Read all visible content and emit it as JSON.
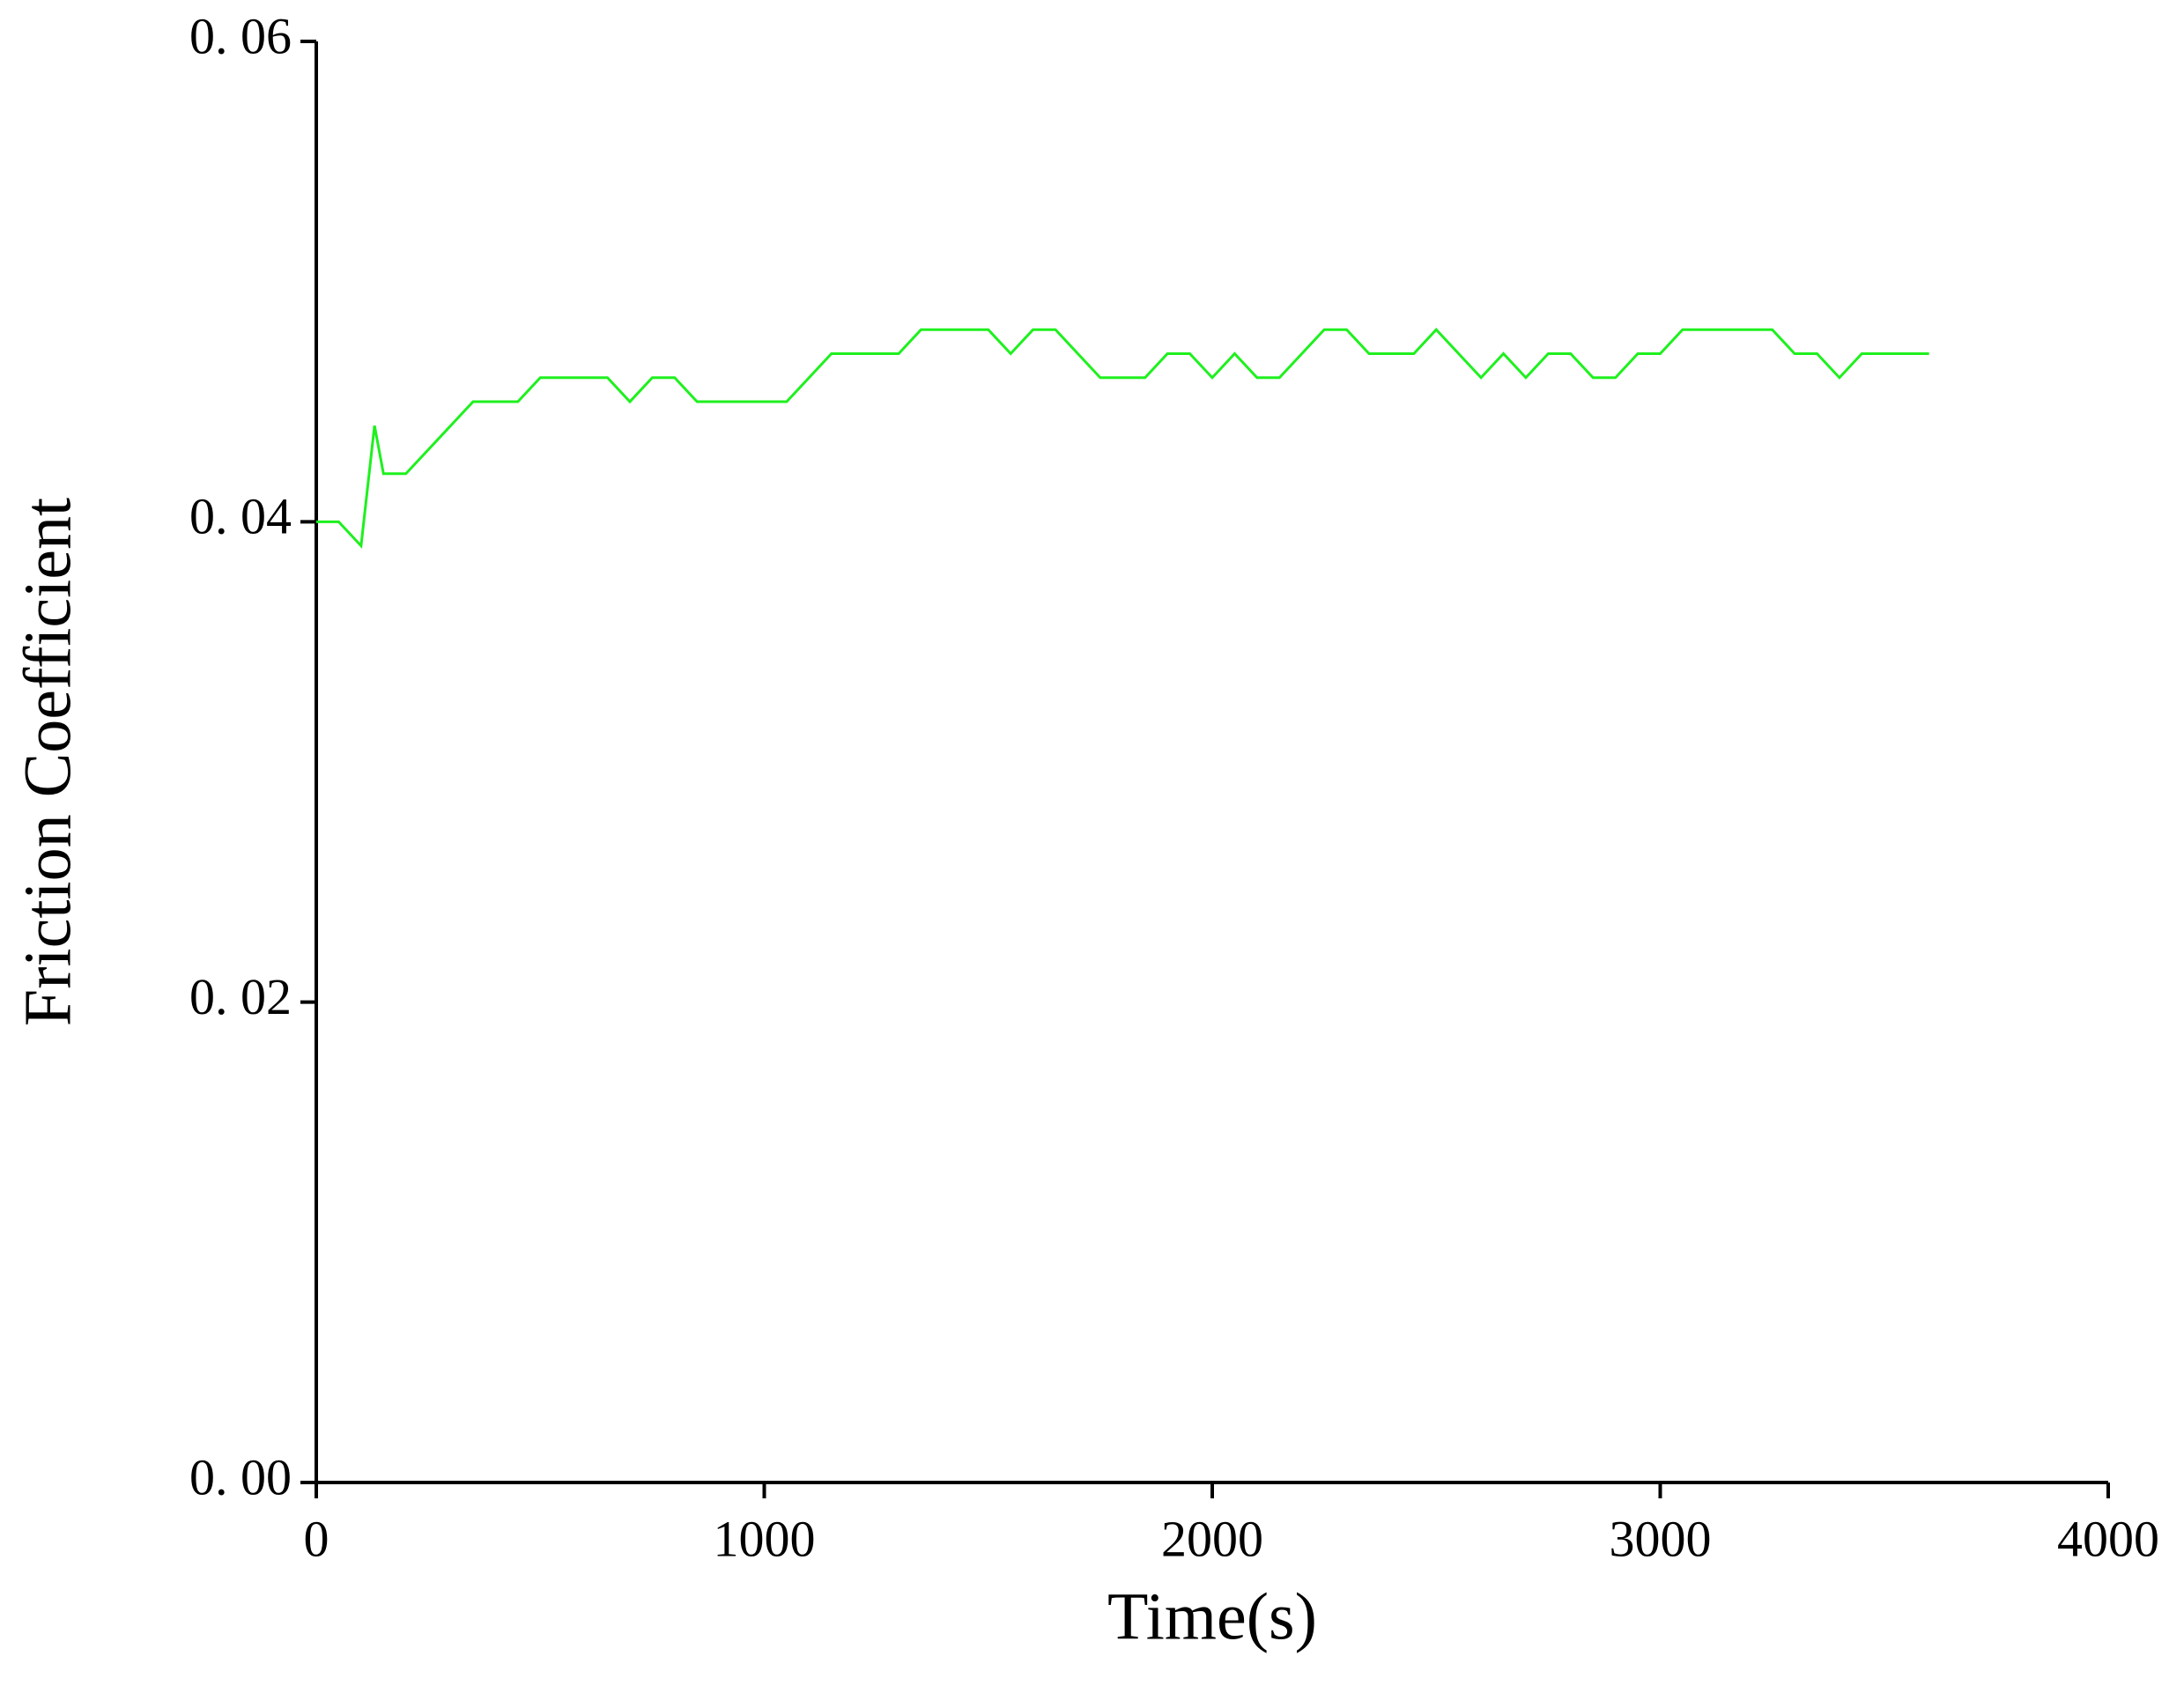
{
  "chart_data": {
    "type": "line",
    "xlabel": "Time(s)",
    "ylabel": "Friction Coefficient",
    "xlim": [
      0,
      4000
    ],
    "xticks": [
      0,
      1000,
      2000,
      3000,
      4000
    ],
    "ylim": [
      0,
      0.06
    ],
    "yticks": [
      {
        "value": 0,
        "label": "0. 00"
      },
      {
        "value": 0.02,
        "label": "0. 02"
      },
      {
        "value": 0.04,
        "label": "0. 04"
      },
      {
        "value": 0.06,
        "label": "0. 06"
      }
    ],
    "grid": false,
    "x": [
      0,
      50,
      100,
      130,
      150,
      200,
      250,
      300,
      350,
      400,
      450,
      500,
      550,
      600,
      650,
      700,
      750,
      800,
      850,
      900,
      950,
      1000,
      1050,
      1100,
      1150,
      1200,
      1250,
      1300,
      1350,
      1400,
      1450,
      1500,
      1550,
      1600,
      1650,
      1700,
      1750,
      1800,
      1850,
      1900,
      1950,
      2000,
      2050,
      2100,
      2150,
      2200,
      2250,
      2300,
      2350,
      2400,
      2450,
      2500,
      2550,
      2600,
      2650,
      2700,
      2750,
      2800,
      2850,
      2900,
      2950,
      3000,
      3050,
      3100,
      3150,
      3200,
      3250,
      3300,
      3350,
      3400,
      3450,
      3500,
      3550,
      3600
    ],
    "series": [
      {
        "color": "#1ef01e",
        "values": [
          0.04,
          0.04,
          0.039,
          0.044,
          0.042,
          0.042,
          0.043,
          0.044,
          0.045,
          0.045,
          0.045,
          0.046,
          0.046,
          0.046,
          0.046,
          0.045,
          0.046,
          0.046,
          0.045,
          0.045,
          0.045,
          0.045,
          0.045,
          0.046,
          0.047,
          0.047,
          0.047,
          0.047,
          0.048,
          0.048,
          0.048,
          0.048,
          0.047,
          0.048,
          0.048,
          0.047,
          0.046,
          0.046,
          0.046,
          0.047,
          0.047,
          0.046,
          0.047,
          0.046,
          0.046,
          0.047,
          0.048,
          0.048,
          0.047,
          0.047,
          0.047,
          0.048,
          0.047,
          0.046,
          0.047,
          0.046,
          0.047,
          0.047,
          0.046,
          0.046,
          0.047,
          0.047,
          0.048,
          0.048,
          0.048,
          0.048,
          0.048,
          0.047,
          0.047,
          0.046,
          0.047,
          0.047,
          0.047,
          0.047
        ]
      }
    ]
  }
}
